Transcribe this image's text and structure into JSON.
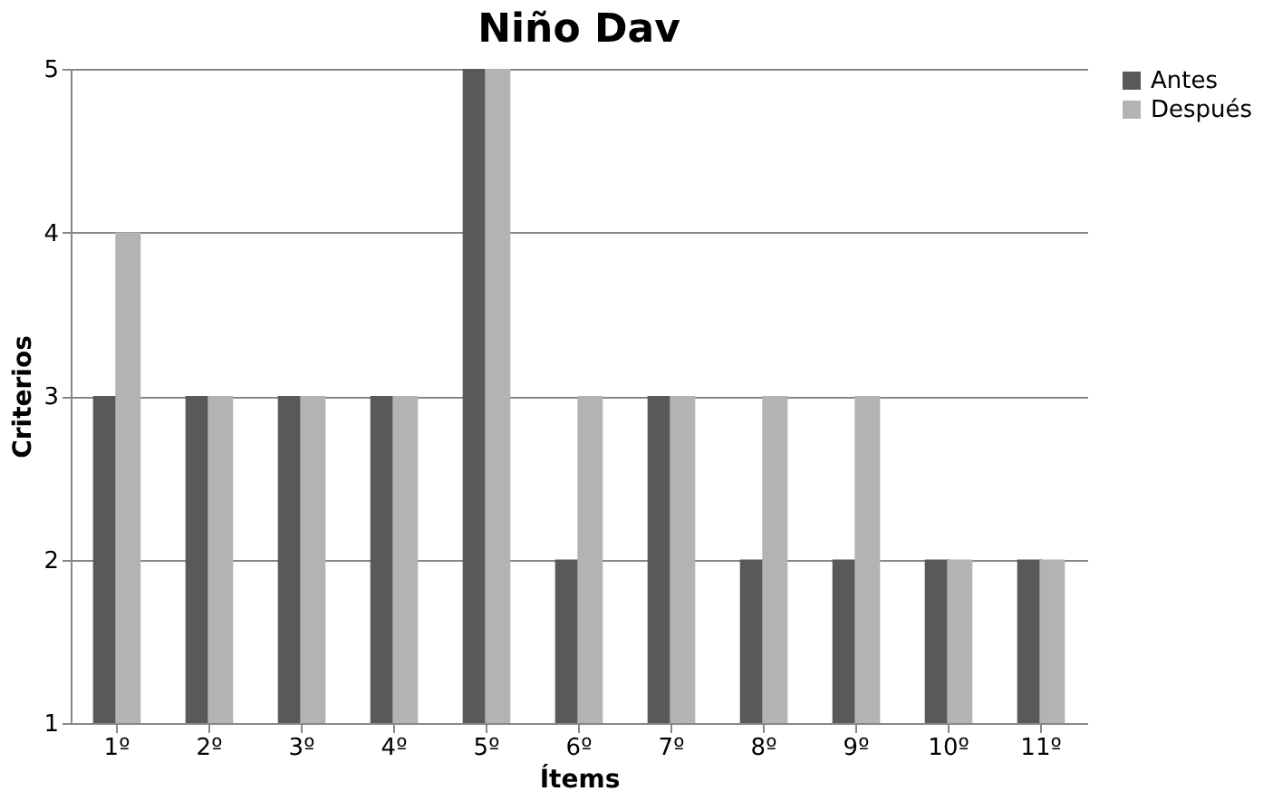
{
  "chart_data": {
    "type": "bar",
    "title": "Niño Dav",
    "xlabel": "Ítems",
    "ylabel": "Criterios",
    "categories": [
      "1º",
      "2º",
      "3º",
      "4º",
      "5º",
      "6º",
      "7º",
      "8º",
      "9º",
      "10º",
      "11º"
    ],
    "series": [
      {
        "name": "Antes",
        "color": "#595959",
        "values": [
          3,
          3,
          3,
          3,
          5,
          2,
          3,
          2,
          2,
          2,
          2
        ]
      },
      {
        "name": "Después",
        "color": "#b3b3b3",
        "values": [
          4,
          3,
          3,
          3,
          5,
          3,
          3,
          3,
          3,
          2,
          2
        ]
      }
    ],
    "ylim": [
      1,
      5
    ],
    "yticks": [
      1,
      2,
      3,
      4,
      5
    ],
    "grid": "y",
    "legend": "right"
  }
}
